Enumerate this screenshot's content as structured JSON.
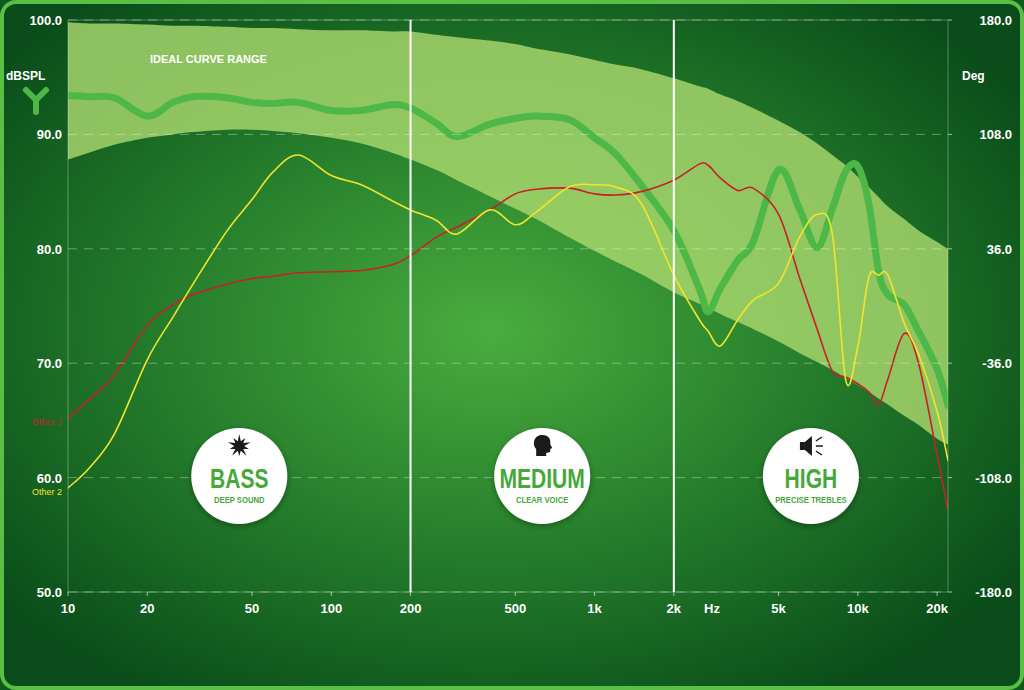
{
  "chart_data": {
    "type": "line",
    "log": "x",
    "grid": true,
    "xlabel": "Hz",
    "ylabel": "dBSPL",
    "y2label": "Deg",
    "xlim": [
      10,
      22000
    ],
    "ylim": [
      50,
      100
    ],
    "y2lim": [
      -180,
      180
    ],
    "xticks": [
      10,
      20,
      50,
      100,
      200,
      500,
      {
        "value": 1000,
        "label": "1k"
      },
      {
        "value": 2000,
        "label": "2k"
      },
      {
        "value": 5000,
        "label": "5k"
      },
      {
        "value": 10000,
        "label": "10k"
      },
      {
        "value": 20000,
        "label": "20k"
      }
    ],
    "yticks": [
      {
        "value": 50,
        "label": "50.0"
      },
      {
        "value": 60,
        "label": "60.0"
      },
      {
        "value": 70,
        "label": "70.0"
      },
      {
        "value": 80,
        "label": "80.0"
      },
      {
        "value": 90,
        "label": "90.0"
      },
      {
        "value": 100,
        "label": "100.0"
      }
    ],
    "y2ticks": [
      {
        "value": -180,
        "label": "-180.0"
      },
      {
        "value": -108,
        "label": "-108.0"
      },
      {
        "value": -36,
        "label": "-36.0"
      },
      {
        "value": 36,
        "label": "36.0"
      },
      {
        "value": 108,
        "label": "108.0"
      },
      {
        "value": 180,
        "label": "180.0"
      }
    ],
    "x": [
      10,
      12,
      15,
      20,
      25,
      30,
      40,
      50,
      60,
      75,
      100,
      130,
      170,
      200,
      250,
      300,
      400,
      500,
      600,
      800,
      1000,
      1200,
      1500,
      2000,
      2500,
      2700,
      3000,
      3500,
      4000,
      5000,
      6000,
      7000,
      8000,
      9000,
      10000,
      11000,
      12000,
      13000,
      15000,
      17000,
      20000,
      22000
    ],
    "series": [
      {
        "name": "IDEAL CURVE RANGE",
        "type": "band",
        "color": "#a9d86e",
        "values": [
          99.8,
          99.7,
          99.7,
          99.6,
          99.5,
          99.5,
          99.4,
          99.3,
          99.3,
          99.2,
          99.1,
          99.1,
          99.0,
          99.0,
          98.7,
          98.5,
          98.2,
          97.9,
          97.5,
          97.0,
          96.5,
          96.1,
          95.7,
          94.9,
          94.2,
          94.0,
          93.5,
          92.9,
          92.3,
          91.2,
          90.2,
          89.2,
          88.2,
          87.3,
          86.3,
          85.4,
          84.5,
          83.7,
          82.6,
          81.6,
          80.6,
          80.0
        ],
        "low": [
          87.8,
          88.4,
          89.1,
          89.7,
          90.0,
          90.2,
          90.4,
          90.4,
          90.3,
          90.1,
          89.7,
          89.2,
          88.4,
          87.8,
          86.9,
          86.0,
          84.6,
          83.5,
          82.6,
          81.0,
          79.8,
          78.9,
          77.8,
          76.2,
          75.2,
          74.9,
          74.3,
          73.6,
          73.0,
          71.9,
          70.9,
          70.1,
          69.4,
          68.7,
          68.1,
          67.5,
          66.9,
          66.4,
          65.4,
          64.6,
          63.4,
          62.9
        ]
      },
      {
        "type": "line",
        "color": "#4db848",
        "line_style": "bold",
        "values": [
          93.4,
          93.3,
          93.2,
          91.6,
          92.8,
          93.3,
          93.2,
          92.8,
          92.7,
          92.8,
          92.1,
          92.1,
          92.6,
          92.3,
          91.0,
          89.8,
          90.9,
          91.4,
          91.6,
          91.3,
          89.7,
          88.3,
          85.6,
          81.6,
          76.5,
          74.5,
          76.5,
          79.0,
          80.6,
          86.9,
          83.5,
          80.1,
          83.5,
          86.8,
          87.2,
          84.0,
          78.0,
          76.0,
          75.1,
          72.8,
          69.5,
          66.3
        ]
      },
      {
        "name": "Other 1",
        "type": "line",
        "color": "#c8202a",
        "line_style": "solid",
        "values": [
          65.2,
          66.8,
          69.0,
          73.3,
          75.1,
          76.0,
          76.9,
          77.4,
          77.6,
          77.9,
          78.0,
          78.1,
          78.6,
          79.4,
          81.0,
          81.9,
          83.4,
          84.8,
          85.2,
          85.3,
          84.8,
          84.7,
          85.0,
          86.0,
          87.4,
          87.3,
          86.2,
          85.1,
          85.3,
          83.0,
          77.5,
          73.0,
          69.3,
          68.8,
          68.2,
          67.5,
          66.4,
          68.6,
          72.6,
          70.0,
          62.0,
          57.2
        ]
      },
      {
        "name": "Other 2",
        "type": "line",
        "color": "#f2e42c",
        "line_style": "solid",
        "values": [
          59.1,
          60.8,
          63.8,
          70.3,
          74.0,
          77.0,
          81.5,
          84.3,
          86.7,
          88.2,
          86.4,
          85.6,
          84.2,
          83.4,
          82.5,
          81.3,
          83.4,
          82.1,
          83.2,
          85.4,
          85.6,
          85.4,
          84.0,
          77.7,
          73.8,
          72.8,
          71.5,
          73.8,
          75.5,
          77.0,
          81.0,
          83.0,
          81.3,
          68.5,
          71.5,
          77.5,
          77.7,
          77.7,
          73.5,
          70.8,
          65.8,
          61.5
        ]
      }
    ],
    "sections": [
      {
        "title": "BASS",
        "subtitle": "DEEP SOUND",
        "from": 10,
        "to": 200
      },
      {
        "title": "MEDIUM",
        "subtitle": "CLEAR VOICE",
        "from": 200,
        "to": 2000
      },
      {
        "title": "HIGH",
        "subtitle": "PRECISE TREBLES",
        "from": 2000,
        "to": 22000
      }
    ]
  }
}
